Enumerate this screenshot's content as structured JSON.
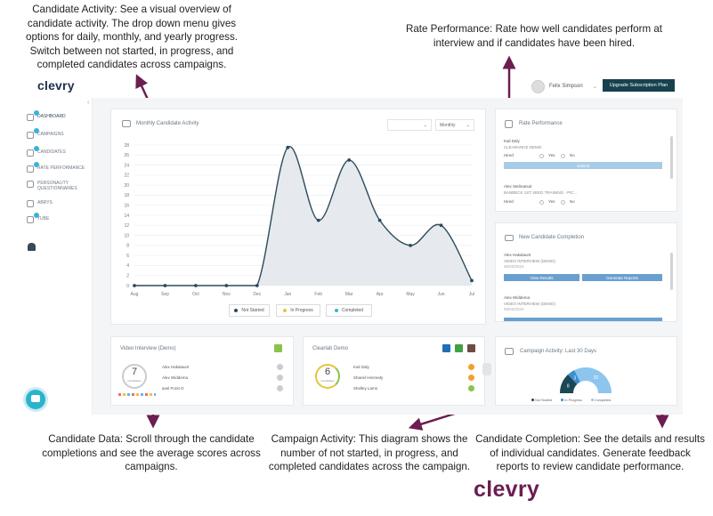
{
  "annotations": {
    "candidate_activity": [
      "Candidate Activity: See a visual overview of",
      "candidate activity. The drop down menu gives",
      "options for daily, monthly, and yearly progress.",
      "Switch between not started, in progress, and",
      "completed candidates across campaigns."
    ],
    "rate_performance": [
      "Rate Performance: Rate how well candidates perform at",
      "interview and if candidates have been hired."
    ],
    "candidate_data": [
      "Candidate Data: Scroll through the candidate",
      "completions and see the average scores across",
      "campaigns."
    ],
    "campaign_activity": [
      "Campaign Activity: This diagram shows the",
      "number of not started, in progress, and",
      "completed candidates across the campaign."
    ],
    "candidate_completion": [
      "Candidate Completion: See the details and results",
      "of individual candidates. Generate feedback",
      "reports to review candidate performance."
    ]
  },
  "brand": {
    "logo_top": "clevry",
    "logo_bottom": "clevry"
  },
  "topbar": {
    "user_name": "Felix Simpson",
    "upgrade_label": "Upgrade Subscription Plan"
  },
  "sidebar": {
    "items": [
      {
        "label": "DASHBOARD"
      },
      {
        "label": "CAMPAIGNS"
      },
      {
        "label": "CANDIDATES"
      },
      {
        "label": "RATE PERFORMANCE"
      },
      {
        "label": "PERSONALITY QUESTIONNAIRES"
      },
      {
        "label": "ABRYS"
      },
      {
        "label": "TUBE"
      }
    ]
  },
  "activity_chart": {
    "title": "Monthly Candidate Activity",
    "period_select": "Monthly",
    "legend": [
      "Not Started",
      "In Progress",
      "Completed"
    ]
  },
  "chart_data": {
    "type": "area",
    "categories": [
      "Aug",
      "Sep",
      "Oct",
      "Nov",
      "Dec",
      "Jan",
      "Feb",
      "Mar",
      "Apr",
      "May",
      "Jun",
      "Jul"
    ],
    "series": [
      {
        "name": "Not Started",
        "values": [
          0,
          0,
          0,
          0,
          0,
          27.5,
          13,
          25,
          13,
          8,
          12,
          1
        ]
      }
    ],
    "y_ticks": [
      0,
      2,
      4,
      6,
      8,
      10,
      12,
      14,
      16,
      18,
      20,
      22,
      24,
      26,
      28
    ],
    "ylim": [
      0,
      28
    ],
    "grid": true,
    "legend_placement": "bottom"
  },
  "rate_performance": {
    "title": "Rate Performance",
    "entries": [
      {
        "name": "Kail Daly",
        "campaign": "CLEARANCE DEMO",
        "hired_label": "Hired",
        "yes": "Yes",
        "no": "No",
        "button": "Submit"
      },
      {
        "name": "Alex Stelmanuit",
        "campaign": "BANBECK 1ST SEED TRAINING - PIC...",
        "hired_label": "Hired",
        "yes": "Yes",
        "no": "No"
      }
    ]
  },
  "completion": {
    "title": "New Candidate Completion",
    "entries": [
      {
        "name": "Alex Hakalaunt",
        "campaign": "VIDEO INTERVIEW (DEMO)",
        "date": "05/03/2024",
        "btn1": "View Results",
        "btn2": "Generate Reports"
      },
      {
        "name": "Alex Widdema",
        "campaign": "VIDEO INTERVIEW (DEMO)",
        "date": "05/03/2024"
      }
    ]
  },
  "video_interview": {
    "title": "Video Interview (Demo)",
    "count": "7",
    "count_caption": "Candidates",
    "people": [
      "Alex Hakalaunt",
      "Alex Widdema",
      "axel Frost O"
    ]
  },
  "clearlab": {
    "title": "Clearlab Demo",
    "count": "6",
    "count_caption": "Candidates",
    "people": [
      "Kail Daly",
      "Shariel Hennedy",
      "Shelley Lams"
    ]
  },
  "campaign_activity": {
    "title": "Campaign Activity: Last 30 Days",
    "legend": [
      "Not Started",
      "In Progress",
      "Completed"
    ],
    "values": [
      8,
      3,
      20
    ]
  },
  "colors": {
    "brand": "#6b1e4f",
    "chart_line": "#2d4a5a",
    "accent_blue": "#39b3d6",
    "button_dark": "#16414e"
  }
}
